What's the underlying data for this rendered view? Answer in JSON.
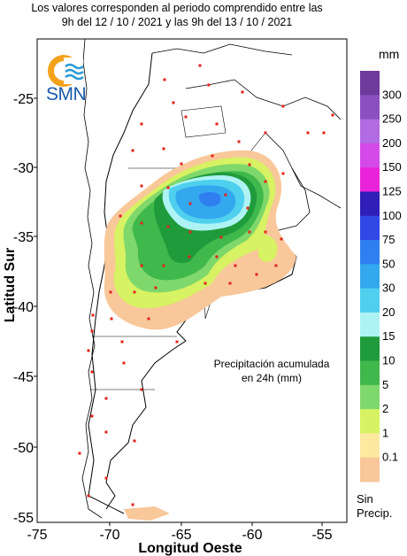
{
  "title_line1": "Los valores corresponden al periodo comprendido entre las",
  "title_line2": "9h del 12 / 10 / 2021  y las 9h del 13 / 10 / 2021",
  "agency": "SMN",
  "annotation_line1": "Precipitación acumulada",
  "annotation_line2": "en 24h (mm)",
  "axis": {
    "x_title": "Longitud Oeste",
    "y_title": "Latitud Sur",
    "x_ticks": [
      "-75",
      "-70",
      "-65",
      "-60",
      "-55"
    ],
    "y_ticks": [
      "-25",
      "-30",
      "-35",
      "-40",
      "-45",
      "-50",
      "-55"
    ]
  },
  "legend": {
    "unit": "mm",
    "no_precip_line1": "Sin",
    "no_precip_line2": "Precip.",
    "classes": [
      {
        "label": "300",
        "color": "#6e3a9c"
      },
      {
        "label": "250",
        "color": "#8b4fc0"
      },
      {
        "label": "200",
        "color": "#b26be2"
      },
      {
        "label": "150",
        "color": "#d44ae8"
      },
      {
        "label": "125",
        "color": "#e823d9"
      },
      {
        "label": "100",
        "color": "#2f1fb8"
      },
      {
        "label": "75",
        "color": "#3048e6"
      },
      {
        "label": "50",
        "color": "#2f7ff0"
      },
      {
        "label": "30",
        "color": "#33a8ef"
      },
      {
        "label": "20",
        "color": "#4fd0ee"
      },
      {
        "label": "15",
        "color": "#aef3f4"
      },
      {
        "label": "10",
        "color": "#1f9b3b"
      },
      {
        "label": "5",
        "color": "#3fb84c"
      },
      {
        "label": "2",
        "color": "#7fd86b"
      },
      {
        "label": "1",
        "color": "#d7f262"
      },
      {
        "label": "0.1",
        "color": "#fde9a0"
      },
      {
        "label": "",
        "color": "#f8c79a"
      }
    ]
  }
}
